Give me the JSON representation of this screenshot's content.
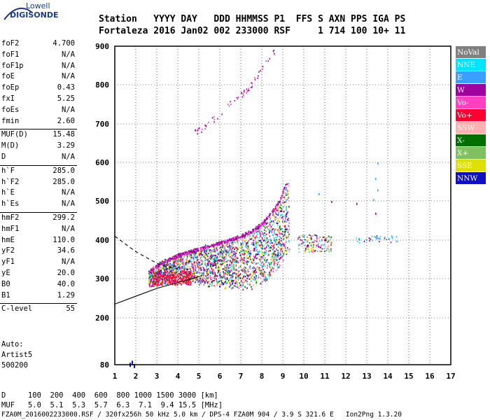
{
  "logo": {
    "line1": "Lowell",
    "line2": "DIGISONDE"
  },
  "header": {
    "line1": "Station   YYYY DAY   DDD HHMMSS P1  FFS S AXN PPS IGA PS",
    "line2": "Fortaleza 2016 Jan02 002 233000 RSF     1 714 100 10+ 11"
  },
  "params": [
    {
      "k": "foF2",
      "v": "4.700"
    },
    {
      "k": "foF1",
      "v": "N/A"
    },
    {
      "k": "foF1p",
      "v": "N/A"
    },
    {
      "k": "foE",
      "v": "N/A"
    },
    {
      "k": "foEp",
      "v": "0.43"
    },
    {
      "k": "fxI",
      "v": "5.25"
    },
    {
      "k": "foEs",
      "v": "N/A"
    },
    {
      "k": "fmin",
      "v": "2.60"
    },
    {
      "k": "MUF(D)",
      "v": "15.48"
    },
    {
      "k": "M(D)",
      "v": "3.29"
    },
    {
      "k": "D",
      "v": "N/A"
    },
    {
      "k": "h`F",
      "v": "285.0"
    },
    {
      "k": "h`F2",
      "v": "285.0"
    },
    {
      "k": "h`E",
      "v": "N/A"
    },
    {
      "k": "h`Es",
      "v": "N/A"
    },
    {
      "k": "hmF2",
      "v": "299.2"
    },
    {
      "k": "hmF1",
      "v": "N/A"
    },
    {
      "k": "hmE",
      "v": "110.0"
    },
    {
      "k": "yF2",
      "v": "34.6"
    },
    {
      "k": "yF1",
      "v": "N/A"
    },
    {
      "k": "yE",
      "v": "20.0"
    },
    {
      "k": "B0",
      "v": "40.0"
    },
    {
      "k": "B1",
      "v": "1.29"
    },
    {
      "k": "C-level",
      "v": "55"
    }
  ],
  "auto": {
    "line1": "Auto:",
    "line2": "Artist5",
    "line3": "500200"
  },
  "footer": {
    "line1": "D     100  200  400  600  800 1000 1500 3000 [km]",
    "line2": "MUF   5.0  5.1  5.3  5.7  6.3  7.1  9.4 15.5 [MHz]",
    "line3": "FZA0M_2016002233000.RSF / 320fx256h 50 kHz 5.0 km / DPS-4 FZA0M 904 / 3.9 S 321.6 E   Ion2Png 1.3.20"
  },
  "legend": [
    {
      "label": "NoVal",
      "color": "#808080"
    },
    {
      "label": "NNE",
      "color": "#00e5ff"
    },
    {
      "label": "E",
      "color": "#3aa0ff"
    },
    {
      "label": "W",
      "color": "#a000a0"
    },
    {
      "label": "Vo-",
      "color": "#ff40c0"
    },
    {
      "label": "Vo+",
      "color": "#ff0030"
    },
    {
      "label": "SSW",
      "color": "#ffb0b0"
    },
    {
      "label": "X-",
      "color": "#007000"
    },
    {
      "label": "X+",
      "color": "#80c060"
    },
    {
      "label": "SSE",
      "color": "#e0e000"
    },
    {
      "label": "NNW",
      "color": "#1010c0"
    }
  ],
  "chart_data": {
    "type": "scatter",
    "xlim": [
      1,
      17
    ],
    "ylim": [
      80,
      900
    ],
    "xticks": [
      1,
      2,
      3,
      4,
      5,
      6,
      7,
      8,
      9,
      10,
      11,
      12,
      13,
      14,
      15,
      16,
      17
    ],
    "yticks": [
      80,
      200,
      300,
      400,
      500,
      600,
      700,
      800,
      900
    ],
    "grid": true,
    "legend_position": "right",
    "traces": [
      {
        "name": "F2 trace (W/Vo)",
        "x": [
          2.6,
          2.8,
          3.0,
          3.2,
          3.5,
          3.8,
          4.0,
          4.3,
          4.6,
          5.0,
          5.5,
          6.0,
          6.5,
          7.0,
          7.5,
          8.0,
          8.3,
          8.6,
          8.9,
          9.1
        ],
        "y": [
          315,
          322,
          330,
          338,
          345,
          352,
          358,
          363,
          368,
          374,
          382,
          390,
          398,
          408,
          420,
          440,
          458,
          478,
          505,
          540
        ]
      },
      {
        "name": "second hop",
        "x": [
          4.8,
          5.2,
          5.5,
          5.9,
          6.2,
          6.6,
          7.0,
          7.3,
          7.6,
          7.9,
          8.2,
          8.5
        ],
        "y": [
          680,
          690,
          705,
          720,
          740,
          760,
          775,
          790,
          810,
          835,
          860,
          885
        ]
      },
      {
        "name": "oblique traces",
        "x": [
          12.5,
          13.0,
          13.3,
          13.5,
          13.7,
          14.0,
          14.3
        ],
        "y": [
          400,
          400,
          405,
          410,
          405,
          400,
          405
        ]
      },
      {
        "name": "low returns",
        "x": [
          1.7,
          1.8,
          1.9
        ],
        "y": [
          85,
          90,
          82
        ]
      }
    ],
    "curves": [
      {
        "name": "profile",
        "style": "solid",
        "x": [
          1,
          2,
          3,
          4,
          5
        ],
        "y": [
          235,
          255,
          275,
          290,
          305
        ]
      },
      {
        "name": "dashed",
        "style": "dashed",
        "x": [
          1,
          1.5,
          2,
          2.5,
          3,
          3.5,
          4
        ],
        "y": [
          410,
          390,
          370,
          355,
          340,
          330,
          325
        ]
      }
    ]
  }
}
